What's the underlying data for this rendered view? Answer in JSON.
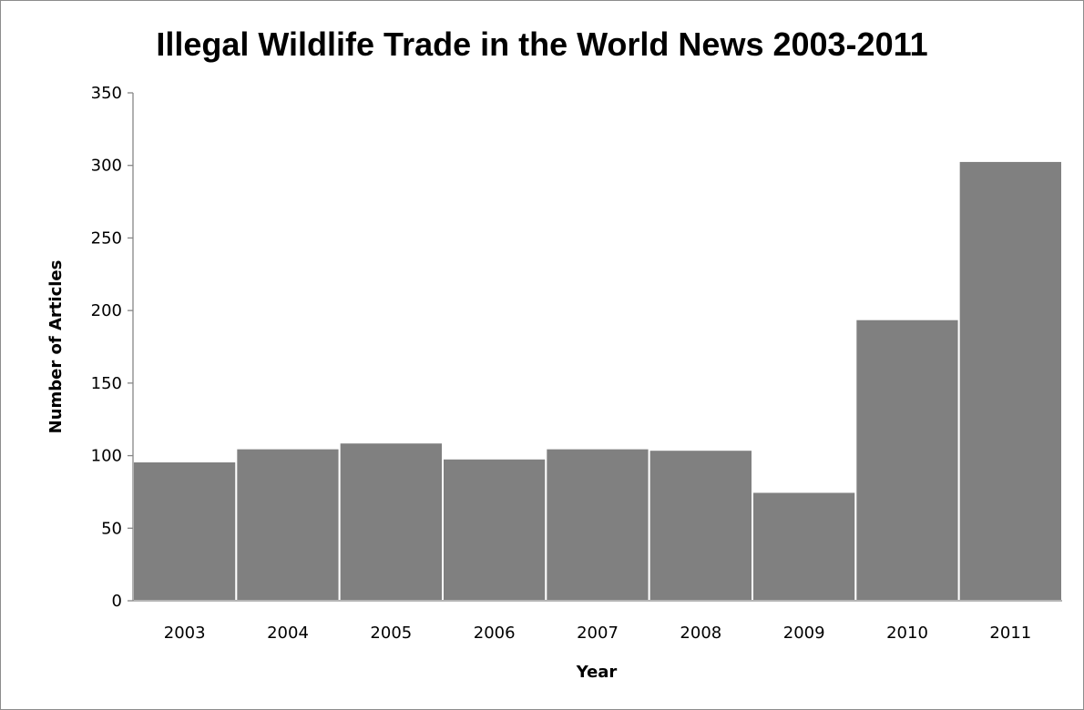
{
  "chart_data": {
    "type": "bar",
    "title": "Illegal Wildlife Trade in the World News 2003-2011",
    "xlabel": "Year",
    "ylabel": "Number of Articles",
    "categories": [
      "2003",
      "2004",
      "2005",
      "2006",
      "2007",
      "2008",
      "2009",
      "2010",
      "2011"
    ],
    "values": [
      96,
      105,
      109,
      98,
      105,
      104,
      75,
      194,
      303
    ],
    "ylim": [
      0,
      350
    ],
    "yticks": [
      0,
      50,
      100,
      150,
      200,
      250,
      300,
      350
    ],
    "ytick_labels": [
      "0",
      "50",
      "100",
      "150",
      "200",
      "250",
      "300",
      "350"
    ],
    "grid": false,
    "legend": "none",
    "bar_color": "#808080",
    "bar_edge_color": "#ffffff",
    "axis_color": "#868686"
  }
}
